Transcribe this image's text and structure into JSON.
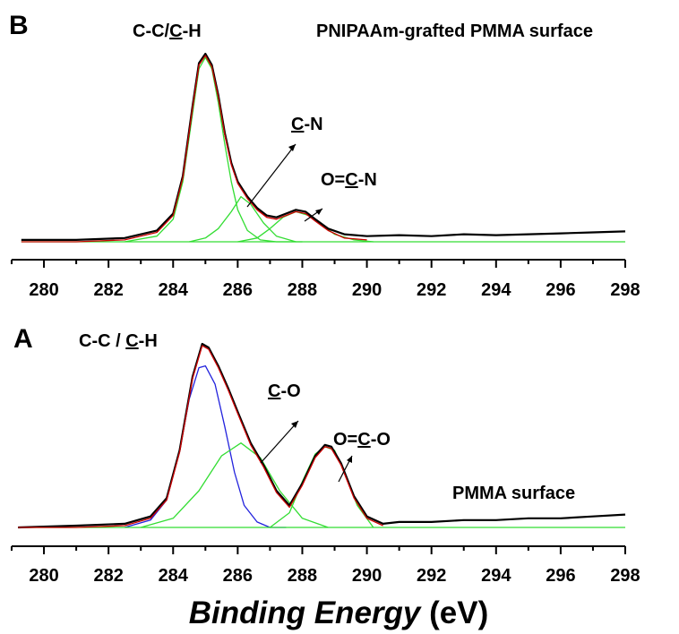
{
  "chart_data": [
    {
      "panel": "B",
      "type": "line",
      "title": "PNIPAAm-grafted PMMA surface",
      "xlim": [
        279,
        298
      ],
      "x_ticks": [
        "280",
        "282",
        "284",
        "286",
        "288",
        "290",
        "292",
        "294",
        "296",
        "298"
      ],
      "grid": false,
      "series": [
        {
          "color": "#000000",
          "x": [
            279.3,
            281,
            282.5,
            283.5,
            284.0,
            284.3,
            284.6,
            284.8,
            285.0,
            285.2,
            285.4,
            285.6,
            285.8,
            286.0,
            286.3,
            286.6,
            286.9,
            287.2,
            287.5,
            287.8,
            288.1,
            288.4,
            288.8,
            289.3,
            290,
            291,
            292,
            293,
            294,
            295,
            296,
            297,
            298
          ],
          "y": [
            0.01,
            0.01,
            0.02,
            0.06,
            0.15,
            0.35,
            0.72,
            0.95,
            1.0,
            0.94,
            0.78,
            0.58,
            0.42,
            0.32,
            0.24,
            0.18,
            0.14,
            0.13,
            0.15,
            0.17,
            0.16,
            0.12,
            0.07,
            0.04,
            0.03,
            0.035,
            0.03,
            0.04,
            0.035,
            0.04,
            0.045,
            0.05,
            0.055
          ]
        },
        {
          "color": "#cc0000",
          "x": [
            279.3,
            281,
            282.5,
            283.5,
            284.0,
            284.3,
            284.6,
            284.8,
            285.0,
            285.2,
            285.4,
            285.6,
            285.8,
            286.0,
            286.3,
            286.6,
            286.9,
            287.2,
            287.5,
            287.8,
            288.1,
            288.4,
            288.8,
            289.3,
            290
          ],
          "y": [
            0.0,
            0.0,
            0.01,
            0.05,
            0.14,
            0.34,
            0.71,
            0.94,
            0.99,
            0.93,
            0.77,
            0.57,
            0.41,
            0.31,
            0.23,
            0.17,
            0.13,
            0.12,
            0.14,
            0.16,
            0.15,
            0.11,
            0.06,
            0.02,
            0.01
          ]
        },
        {
          "color": "#33dd33",
          "x": [
            282.5,
            283.5,
            284.0,
            284.3,
            284.6,
            284.8,
            285.0,
            285.2,
            285.4,
            285.6,
            285.8,
            286.0,
            286.3,
            286.7,
            287.2,
            288
          ],
          "y": [
            0.0,
            0.03,
            0.12,
            0.32,
            0.68,
            0.92,
            0.98,
            0.92,
            0.74,
            0.52,
            0.32,
            0.17,
            0.06,
            0.01,
            0.0,
            0.0
          ]
        },
        {
          "color": "#33dd33",
          "x": [
            284.5,
            285.0,
            285.4,
            285.8,
            286.1,
            286.4,
            286.8,
            287.2,
            287.8
          ],
          "y": [
            0.0,
            0.02,
            0.07,
            0.16,
            0.24,
            0.2,
            0.1,
            0.03,
            0.0
          ]
        },
        {
          "color": "#33dd33",
          "x": [
            286.0,
            286.6,
            287.0,
            287.4,
            287.8,
            288.2,
            288.6,
            289.0,
            289.6,
            290.2
          ],
          "y": [
            0.0,
            0.02,
            0.07,
            0.13,
            0.16,
            0.14,
            0.09,
            0.04,
            0.01,
            0.0
          ]
        },
        {
          "color": "#33dd33",
          "x": [
            279.3,
            298
          ],
          "y": [
            0.0,
            0.0
          ]
        }
      ],
      "annotations": [
        {
          "text_parts": [
            "C-C/",
            "C",
            "-H"
          ],
          "underline_index": 1
        },
        {
          "text_parts": [
            "",
            "C",
            "-N"
          ],
          "underline_index": 1
        },
        {
          "text_parts": [
            "O=",
            "C",
            "-N"
          ],
          "underline_index": 1
        }
      ],
      "panel_label": "B"
    },
    {
      "panel": "A",
      "type": "line",
      "title": "PMMA surface",
      "xlim": [
        279,
        298
      ],
      "x_ticks": [
        "280",
        "282",
        "284",
        "286",
        "288",
        "290",
        "292",
        "294",
        "296",
        "298"
      ],
      "grid": false,
      "series": [
        {
          "color": "#000000",
          "x": [
            279.2,
            281,
            282.5,
            283.3,
            283.8,
            284.2,
            284.6,
            284.9,
            285.1,
            285.4,
            285.7,
            286.0,
            286.4,
            286.8,
            287.2,
            287.6,
            288.0,
            288.4,
            288.7,
            288.9,
            289.2,
            289.6,
            290.0,
            290.5,
            291,
            292,
            293,
            294,
            295,
            296,
            297,
            298
          ],
          "y": [
            0.0,
            0.01,
            0.02,
            0.06,
            0.16,
            0.42,
            0.82,
            1.0,
            0.98,
            0.88,
            0.76,
            0.63,
            0.46,
            0.34,
            0.2,
            0.12,
            0.24,
            0.39,
            0.45,
            0.44,
            0.35,
            0.17,
            0.06,
            0.02,
            0.03,
            0.03,
            0.04,
            0.04,
            0.05,
            0.05,
            0.06,
            0.07
          ]
        },
        {
          "color": "#cc0000",
          "x": [
            279.2,
            281,
            282.5,
            283.3,
            283.8,
            284.2,
            284.6,
            284.9,
            285.1,
            285.4,
            285.7,
            286.0,
            286.4,
            286.8,
            287.2,
            287.6,
            288.0,
            288.4,
            288.7,
            288.9,
            289.2,
            289.6,
            290.0,
            290.5
          ],
          "y": [
            0.0,
            0.0,
            0.01,
            0.05,
            0.15,
            0.41,
            0.81,
            0.99,
            0.97,
            0.87,
            0.75,
            0.62,
            0.45,
            0.33,
            0.19,
            0.11,
            0.23,
            0.38,
            0.44,
            0.43,
            0.34,
            0.16,
            0.05,
            0.01
          ]
        },
        {
          "color": "#2222dd",
          "x": [
            282.5,
            283.3,
            283.8,
            284.2,
            284.5,
            284.8,
            285.0,
            285.3,
            285.6,
            285.9,
            286.2,
            286.6,
            287.0,
            287.5
          ],
          "y": [
            0.0,
            0.04,
            0.15,
            0.42,
            0.7,
            0.87,
            0.88,
            0.78,
            0.55,
            0.3,
            0.12,
            0.03,
            0.0,
            0.0
          ]
        },
        {
          "color": "#33dd33",
          "x": [
            283.0,
            284.0,
            284.8,
            285.5,
            286.1,
            286.7,
            287.3,
            288.0,
            288.8
          ],
          "y": [
            0.0,
            0.05,
            0.2,
            0.39,
            0.46,
            0.38,
            0.2,
            0.05,
            0.0
          ]
        },
        {
          "color": "#33dd33",
          "x": [
            287.0,
            287.6,
            288.0,
            288.4,
            288.7,
            289.0,
            289.3,
            289.7,
            290.2
          ],
          "y": [
            0.0,
            0.08,
            0.25,
            0.4,
            0.44,
            0.42,
            0.3,
            0.12,
            0.0
          ]
        },
        {
          "color": "#33dd33",
          "x": [
            279.2,
            298
          ],
          "y": [
            0.0,
            0.0
          ]
        }
      ],
      "annotations": [
        {
          "text_parts": [
            "C-C / ",
            "C",
            "-H"
          ],
          "underline_index": 1
        },
        {
          "text_parts": [
            "",
            "C",
            "-O"
          ],
          "underline_index": 1
        },
        {
          "text_parts": [
            "O=",
            "C",
            "-O"
          ],
          "underline_index": 1
        }
      ],
      "panel_label": "A"
    }
  ],
  "xlabel": {
    "italic_part": "Binding Energy",
    "plain_part": " (eV)"
  }
}
